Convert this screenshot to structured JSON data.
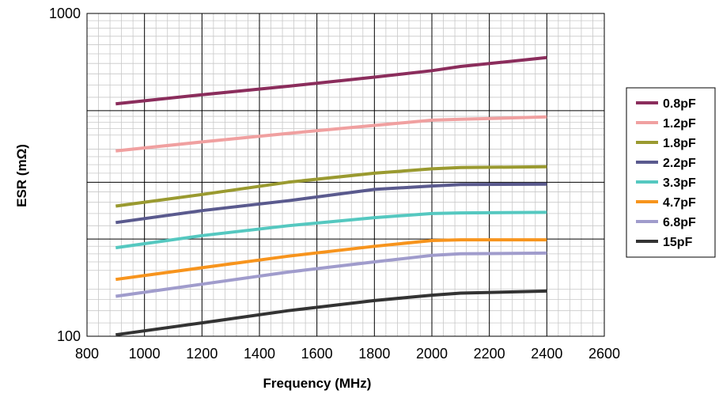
{
  "chart_data": {
    "type": "line",
    "title": "",
    "xlabel": "Frequency (MHz)",
    "ylabel": "ESR (mΩ)",
    "xlim": [
      800,
      2600
    ],
    "ylim": [
      100,
      1000
    ],
    "y_scale": "log",
    "grid": true,
    "legend_position": "right",
    "x_ticks": [
      "800",
      "1000",
      "1200",
      "1400",
      "1600",
      "1800",
      "2000",
      "2200",
      "2400",
      "2600"
    ],
    "y_ticks": [
      "100",
      "1000"
    ],
    "x": [
      900,
      1200,
      1500,
      1800,
      2000,
      2100,
      2400
    ],
    "series": [
      {
        "name": "0.8pF",
        "color": "#8b2d5c",
        "values": [
          525,
          560,
          595,
          635,
          665,
          685,
          730
        ]
      },
      {
        "name": "1.2pF",
        "color": "#f0a0a0",
        "values": [
          375,
          400,
          425,
          450,
          467,
          470,
          478
        ]
      },
      {
        "name": "1.8pF",
        "color": "#9a9a30",
        "values": [
          253,
          275,
          300,
          320,
          330,
          333,
          335
        ]
      },
      {
        "name": "2.2pF",
        "color": "#5a5a8e",
        "values": [
          225,
          245,
          263,
          285,
          292,
          295,
          296
        ]
      },
      {
        "name": "3.3pF",
        "color": "#55c8c0",
        "values": [
          188,
          205,
          220,
          233,
          240,
          241,
          242
        ]
      },
      {
        "name": "4.7pF",
        "color": "#f7941d",
        "values": [
          150,
          163,
          177,
          190,
          198,
          199,
          199
        ]
      },
      {
        "name": "6.8pF",
        "color": "#a09ccc",
        "values": [
          133,
          145,
          158,
          170,
          178,
          180,
          181
        ]
      },
      {
        "name": "15pF",
        "color": "#333333",
        "values": [
          101,
          110,
          120,
          129,
          134,
          136,
          138
        ]
      }
    ]
  }
}
